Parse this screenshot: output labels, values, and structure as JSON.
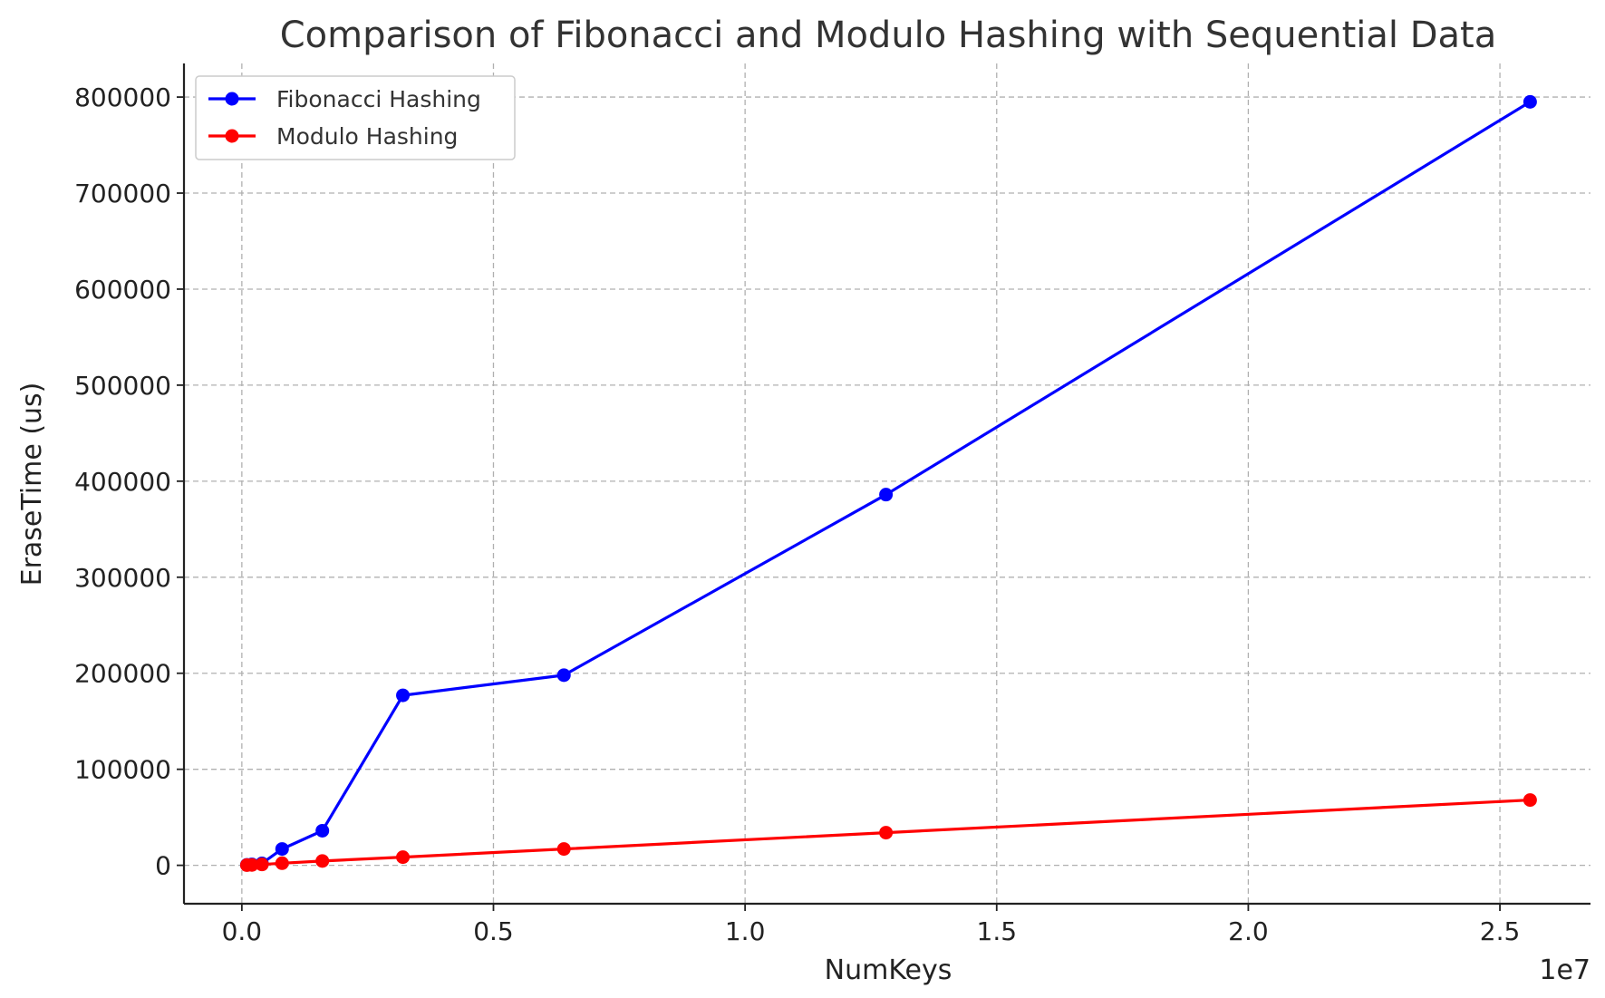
{
  "chart_data": {
    "type": "line",
    "title": "Comparison of Fibonacci and Modulo Hashing with Sequential Data",
    "xlabel": "NumKeys",
    "ylabel": "EraseTime (us)",
    "x_offset_text": "1e7",
    "xlim": [
      -1150000,
      26800000
    ],
    "ylim": [
      -40000,
      835000
    ],
    "xticks": [
      0,
      5000000,
      10000000,
      15000000,
      20000000,
      25000000
    ],
    "xtick_labels": [
      "0.0",
      "0.5",
      "1.0",
      "1.5",
      "2.0",
      "2.5"
    ],
    "yticks": [
      0,
      100000,
      200000,
      300000,
      400000,
      500000,
      600000,
      700000,
      800000
    ],
    "ytick_labels": [
      "0",
      "100000",
      "200000",
      "300000",
      "400000",
      "500000",
      "600000",
      "700000",
      "800000"
    ],
    "grid": true,
    "legend_position": "top-left",
    "x": [
      100000,
      200000,
      400000,
      800000,
      1600000,
      3200000,
      6400000,
      12800000,
      25600000
    ],
    "series": [
      {
        "name": "Fibonacci Hashing",
        "color": "#0000ff",
        "values": [
          500,
          1000,
          2000,
          17000,
          36000,
          177000,
          198000,
          386000,
          795000
        ]
      },
      {
        "name": "Modulo Hashing",
        "color": "#ff0000",
        "values": [
          200,
          400,
          900,
          2200,
          4500,
          8500,
          17000,
          34000,
          68000
        ]
      }
    ]
  }
}
